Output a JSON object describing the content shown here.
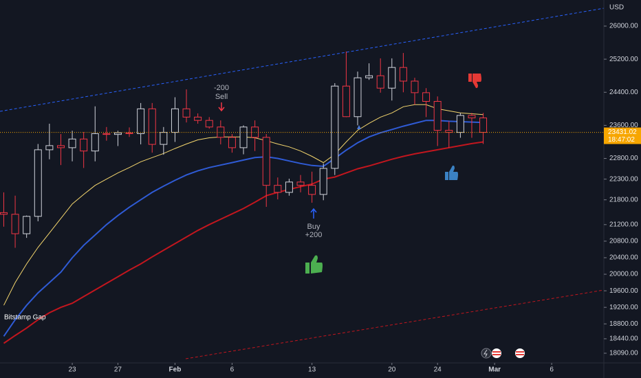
{
  "chart_data": {
    "type": "candlestick",
    "currency": "USD",
    "gap_label": "Bitstamp Gap",
    "sell_signal": [
      "-200",
      "Sell"
    ],
    "buy_signal": [
      "Buy",
      "+200"
    ],
    "last_price": 23431.02,
    "countdown": "18:47:02",
    "x": [
      17,
      18,
      19,
      20,
      21,
      22,
      23,
      24,
      25,
      26,
      27,
      28,
      29,
      30,
      31,
      32,
      33,
      34,
      35,
      36,
      37,
      38,
      39,
      40,
      41,
      42,
      43,
      44,
      45,
      46,
      47,
      48,
      49,
      50,
      51,
      52,
      53,
      54,
      55,
      56,
      57,
      58,
      59
    ],
    "open": [
      21490,
      21450,
      20980,
      21400,
      23010,
      23110,
      23060,
      23270,
      22980,
      23400,
      23380,
      23420,
      23400,
      24000,
      23140,
      23430,
      24000,
      23800,
      23720,
      23560,
      23310,
      23060,
      23560,
      23310,
      22150,
      21980,
      22230,
      22150,
      21930,
      22560,
      24550,
      23810,
      24750,
      24800,
      24500,
      25000,
      24670,
      24390,
      24180,
      23480,
      23430,
      23840,
      23780
    ],
    "high": [
      21980,
      21900,
      21420,
      23150,
      23640,
      23390,
      23470,
      23440,
      24060,
      23560,
      23470,
      23550,
      24140,
      24140,
      23560,
      24280,
      24470,
      23890,
      23800,
      23720,
      23390,
      23600,
      23720,
      23390,
      22340,
      22310,
      22400,
      22480,
      22680,
      24620,
      25385,
      24900,
      25100,
      25220,
      25220,
      25350,
      24750,
      24500,
      24300,
      23700,
      23900,
      23900,
      23900
    ],
    "low": [
      21150,
      20640,
      20880,
      21280,
      22780,
      22640,
      22730,
      22570,
      22730,
      23230,
      23100,
      23320,
      23140,
      22940,
      22890,
      23200,
      23670,
      23640,
      23520,
      23140,
      22940,
      22900,
      22980,
      21630,
      21810,
      21900,
      21980,
      21730,
      21790,
      22400,
      23800,
      23600,
      24700,
      24390,
      24200,
      24400,
      24100,
      23800,
      23100,
      23060,
      23300,
      23300,
      23150
    ],
    "close": [
      21450,
      20980,
      21400,
      23010,
      23110,
      23060,
      23270,
      22980,
      23400,
      23380,
      23420,
      23400,
      24000,
      23140,
      23430,
      24000,
      23800,
      23720,
      23560,
      23310,
      23060,
      23560,
      23310,
      22150,
      21980,
      22230,
      22150,
      21930,
      22560,
      24550,
      23810,
      24750,
      24800,
      24500,
      25000,
      24670,
      24390,
      24180,
      23480,
      23430,
      23840,
      23780,
      23431.02
    ],
    "up_color": "#d1d4dc",
    "down_color": "#f23645",
    "series": [
      {
        "color": "#f5d76e",
        "values": [
          19250,
          19800,
          20250,
          20650,
          21000,
          21350,
          21700,
          21930,
          22150,
          22300,
          22450,
          22580,
          22720,
          22820,
          22920,
          23040,
          23150,
          23250,
          23300,
          23320,
          23320,
          23320,
          23300,
          23230,
          23150,
          23080,
          22980,
          22850,
          22700,
          22900,
          23200,
          23480,
          23650,
          23800,
          23900,
          24050,
          24100,
          24100,
          24000,
          23950,
          23900,
          23880,
          23860
        ]
      },
      {
        "color": "#2f5bd6",
        "values": [
          18500,
          18900,
          19250,
          19550,
          19800,
          20050,
          20400,
          20700,
          20950,
          21200,
          21420,
          21620,
          21800,
          21980,
          22130,
          22270,
          22400,
          22500,
          22580,
          22640,
          22700,
          22760,
          22820,
          22840,
          22800,
          22740,
          22680,
          22630,
          22610,
          22800,
          23000,
          23180,
          23320,
          23420,
          23500,
          23580,
          23650,
          23720,
          23720,
          23700,
          23690,
          23680,
          23670
        ]
      },
      {
        "color": "#c3161e",
        "values": [
          18330,
          18520,
          18700,
          18900,
          19070,
          19200,
          19300,
          19460,
          19620,
          19780,
          19940,
          20100,
          20250,
          20420,
          20580,
          20740,
          20900,
          21060,
          21200,
          21330,
          21460,
          21590,
          21740,
          21900,
          21980,
          22050,
          22120,
          22180,
          22300,
          22350,
          22450,
          22550,
          22620,
          22700,
          22780,
          22850,
          22910,
          22960,
          23010,
          23060,
          23110,
          23160,
          23200
        ]
      }
    ],
    "xlim": [
      16.67,
      69.57
    ],
    "ylim": [
      17857,
      26631
    ],
    "xticks": [
      {
        "value": 23,
        "label": "23"
      },
      {
        "value": 27,
        "label": "27"
      },
      {
        "value": 32,
        "label": "Feb"
      },
      {
        "value": 37,
        "label": "6"
      },
      {
        "value": 44,
        "label": "13"
      },
      {
        "value": 51,
        "label": "20"
      },
      {
        "value": 55,
        "label": "24"
      },
      {
        "value": 60,
        "label": "Mar"
      },
      {
        "value": 65,
        "label": "6"
      }
    ],
    "yticks": [
      {
        "value": 26000,
        "label": "26000.00"
      },
      {
        "value": 25200,
        "label": "25200.00"
      },
      {
        "value": 24400,
        "label": "24400.00"
      },
      {
        "value": 23600,
        "label": "23600.00"
      },
      {
        "value": 22800,
        "label": "22800.00"
      },
      {
        "value": 22300,
        "label": "22300.00"
      },
      {
        "value": 21800,
        "label": "21800.00"
      },
      {
        "value": 21200,
        "label": "21200.00"
      },
      {
        "value": 20800,
        "label": "20800.00"
      },
      {
        "value": 20400,
        "label": "20400.00"
      },
      {
        "value": 20000,
        "label": "20000.00"
      },
      {
        "value": 19600,
        "label": "19600.00"
      },
      {
        "value": 19200,
        "label": "19200.00"
      },
      {
        "value": 18800,
        "label": "18800.00"
      },
      {
        "value": 18440,
        "label": "18440.00"
      },
      {
        "value": 18090,
        "label": "18090.00"
      }
    ]
  }
}
